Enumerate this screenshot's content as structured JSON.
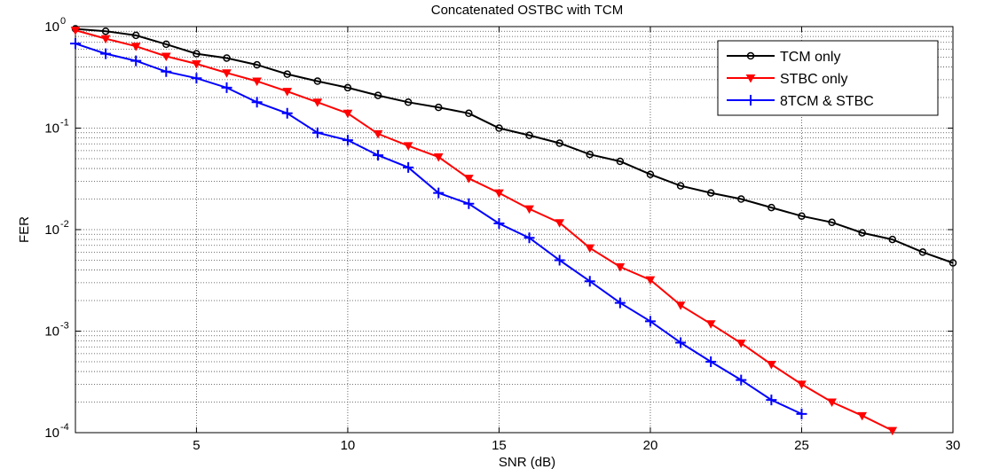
{
  "chart_data": {
    "type": "line",
    "title": "Concatenated OSTBC with TCM",
    "xlabel": "SNR (dB)",
    "ylabel": "FER",
    "xlim": [
      1,
      30
    ],
    "ylim": [
      0.0001,
      1
    ],
    "yscale": "log",
    "grid": true,
    "legend_position": "top-right",
    "x_ticks": [
      5,
      10,
      15,
      20,
      25,
      30
    ],
    "y_ticks": [
      {
        "value": 1,
        "base": "10",
        "exp": "0"
      },
      {
        "value": 0.1,
        "base": "10",
        "exp": "-1"
      },
      {
        "value": 0.01,
        "base": "10",
        "exp": "-2"
      },
      {
        "value": 0.001,
        "base": "10",
        "exp": "-3"
      },
      {
        "value": 0.0001,
        "base": "10",
        "exp": "-4"
      }
    ],
    "series": [
      {
        "name": "TCM only",
        "color": "#000000",
        "marker": "circle",
        "x": [
          1,
          2,
          3,
          4,
          5,
          6,
          7,
          8,
          9,
          10,
          11,
          12,
          13,
          14,
          15,
          16,
          17,
          18,
          19,
          20,
          21,
          22,
          23,
          24,
          25,
          26,
          27,
          28,
          29,
          30
        ],
        "y": [
          0.95,
          0.9,
          0.82,
          0.67,
          0.54,
          0.49,
          0.42,
          0.34,
          0.29,
          0.25,
          0.21,
          0.18,
          0.16,
          0.14,
          0.1,
          0.085,
          0.071,
          0.055,
          0.047,
          0.035,
          0.027,
          0.023,
          0.02,
          0.0165,
          0.0136,
          0.0118,
          0.0093,
          0.008,
          0.006,
          0.0047
        ]
      },
      {
        "name": "STBC only",
        "color": "#ff0000",
        "marker": "triangle-down",
        "x": [
          1,
          2,
          3,
          4,
          5,
          6,
          7,
          8,
          9,
          10,
          11,
          12,
          13,
          14,
          15,
          16,
          17,
          18,
          19,
          20,
          21,
          22,
          23,
          24,
          25,
          26,
          27,
          28
        ],
        "y": [
          0.92,
          0.76,
          0.64,
          0.51,
          0.43,
          0.35,
          0.29,
          0.23,
          0.18,
          0.14,
          0.088,
          0.067,
          0.052,
          0.032,
          0.023,
          0.016,
          0.0117,
          0.0066,
          0.0043,
          0.0032,
          0.0018,
          0.00118,
          0.00076,
          0.00047,
          0.0003,
          0.0002,
          0.000147,
          0.000105
        ]
      },
      {
        "name": "8TCM & STBC",
        "color": "#0000ff",
        "marker": "plus",
        "x": [
          1,
          2,
          3,
          4,
          5,
          6,
          7,
          8,
          9,
          10,
          11,
          12,
          13,
          14,
          15,
          16,
          17,
          18,
          19,
          20,
          21,
          22,
          23,
          24,
          25
        ],
        "y": [
          0.68,
          0.54,
          0.46,
          0.36,
          0.31,
          0.25,
          0.18,
          0.14,
          0.09,
          0.076,
          0.054,
          0.041,
          0.023,
          0.018,
          0.0115,
          0.0083,
          0.005,
          0.0031,
          0.0019,
          0.00125,
          0.00077,
          0.0005,
          0.00033,
          0.00021,
          0.000153
        ]
      }
    ]
  }
}
